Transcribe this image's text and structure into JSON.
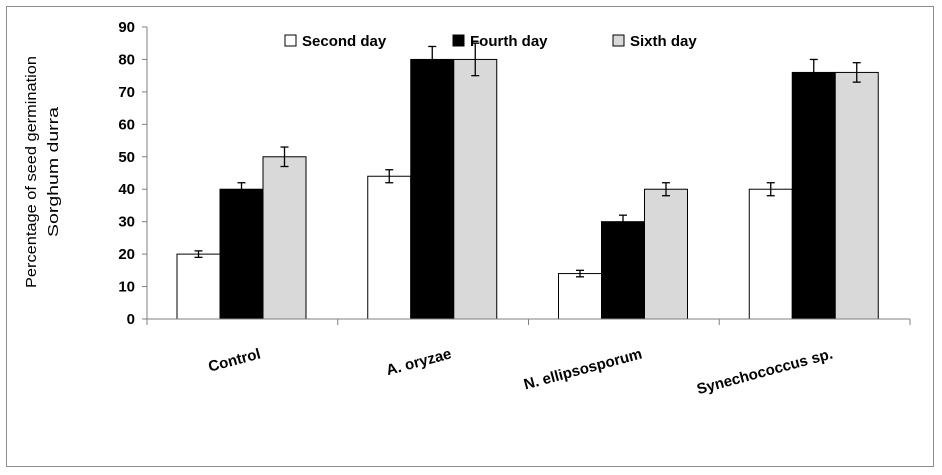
{
  "chart_data": {
    "type": "bar",
    "ylabel_lines": [
      "Percentage of  seed germination",
      "Sorghum durra"
    ],
    "xlabel": "",
    "ylim": [
      0,
      90
    ],
    "yticks": [
      0,
      10,
      20,
      30,
      40,
      50,
      60,
      70,
      80,
      90
    ],
    "grid": false,
    "legend_position": "top",
    "categories": [
      "Control",
      "A. oryzae",
      "N. ellipsosporum",
      "Synechococcus sp."
    ],
    "series": [
      {
        "name": "Second day",
        "color": "#ffffff",
        "values": [
          20,
          44,
          14,
          40
        ],
        "errors": [
          1,
          2,
          1,
          2
        ]
      },
      {
        "name": "Fourth day",
        "color": "#000000",
        "values": [
          40,
          80,
          30,
          76
        ],
        "errors": [
          2,
          4,
          2,
          4
        ]
      },
      {
        "name": "Sixth day",
        "color": "#d9d9d9",
        "values": [
          50,
          80,
          40,
          76
        ],
        "errors": [
          3,
          5,
          2,
          3
        ]
      }
    ]
  }
}
